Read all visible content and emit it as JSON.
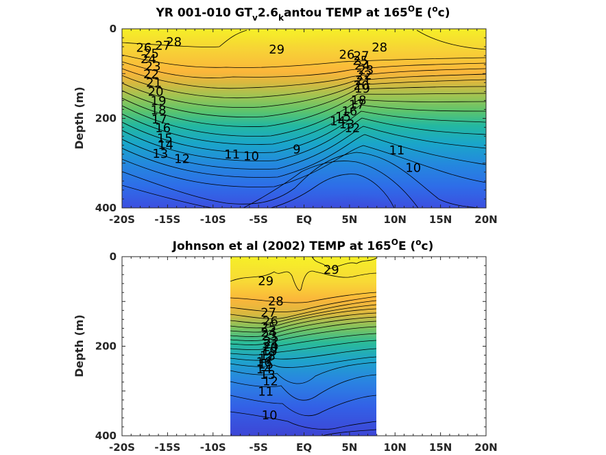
{
  "chart_data": [
    {
      "type": "heatmap",
      "subtype": "filled-contour",
      "title_parts": [
        "YR 001-010 GT",
        "v",
        "2.6",
        "k",
        "antou TEMP at 165",
        "O",
        "E (",
        "o",
        "c)"
      ],
      "xlabel": "",
      "ylabel": "Depth (m)",
      "x_ticks": [
        "-20S",
        "-15S",
        "-10S",
        "-5S",
        "EQ",
        "5N",
        "10N",
        "15N",
        "20N"
      ],
      "x_tick_values": [
        -20,
        -15,
        -10,
        -5,
        0,
        5,
        10,
        15,
        20
      ],
      "y_ticks": [
        "0",
        "200",
        "400"
      ],
      "y_tick_values": [
        0,
        200,
        400
      ],
      "xlim": [
        -20,
        20
      ],
      "ylim": [
        400,
        0
      ],
      "y_reversed": true,
      "grid": false,
      "colormap": "parula",
      "color_range_degC": [
        8,
        30
      ],
      "contour_interval_degC": 1,
      "contour_levels": [
        9,
        10,
        11,
        12,
        13,
        14,
        15,
        16,
        17,
        18,
        19,
        20,
        21,
        22,
        23,
        24,
        25,
        26,
        27,
        28,
        29
      ],
      "contour_labels": [
        {
          "text": "28",
          "x": -14.3,
          "y": 30
        },
        {
          "text": "27",
          "x": -15.5,
          "y": 38
        },
        {
          "text": "26",
          "x": -17.6,
          "y": 43
        },
        {
          "text": "25",
          "x": -16.8,
          "y": 56
        },
        {
          "text": "24",
          "x": -17.1,
          "y": 68
        },
        {
          "text": "23",
          "x": -16.6,
          "y": 84
        },
        {
          "text": "22",
          "x": -16.8,
          "y": 102
        },
        {
          "text": "21",
          "x": -16.5,
          "y": 121
        },
        {
          "text": "20",
          "x": -16.3,
          "y": 141
        },
        {
          "text": "19",
          "x": -16.0,
          "y": 162
        },
        {
          "text": "18",
          "x": -16.0,
          "y": 182
        },
        {
          "text": "17",
          "x": -15.9,
          "y": 203
        },
        {
          "text": "16",
          "x": -15.5,
          "y": 222
        },
        {
          "text": "15",
          "x": -15.3,
          "y": 245
        },
        {
          "text": "14",
          "x": -15.2,
          "y": 260
        },
        {
          "text": "13",
          "x": -15.8,
          "y": 280
        },
        {
          "text": "12",
          "x": -13.4,
          "y": 291
        },
        {
          "text": "11",
          "x": -7.9,
          "y": 281
        },
        {
          "text": "10",
          "x": -5.8,
          "y": 285
        },
        {
          "text": "9",
          "x": -0.8,
          "y": 270
        },
        {
          "text": "29",
          "x": -3.0,
          "y": 47
        },
        {
          "text": "28",
          "x": 8.3,
          "y": 42
        },
        {
          "text": "27",
          "x": 6.3,
          "y": 61
        },
        {
          "text": "26",
          "x": 4.7,
          "y": 58
        },
        {
          "text": "25",
          "x": 6.2,
          "y": 72
        },
        {
          "text": "24",
          "x": 6.4,
          "y": 83
        },
        {
          "text": "23",
          "x": 6.8,
          "y": 93
        },
        {
          "text": "22",
          "x": 6.6,
          "y": 104
        },
        {
          "text": "21",
          "x": 6.5,
          "y": 116
        },
        {
          "text": "20",
          "x": 6.3,
          "y": 127
        },
        {
          "text": "19",
          "x": 6.4,
          "y": 134
        },
        {
          "text": "18",
          "x": 6.0,
          "y": 160
        },
        {
          "text": "17",
          "x": 5.8,
          "y": 170
        },
        {
          "text": "16",
          "x": 5.0,
          "y": 185
        },
        {
          "text": "15",
          "x": 4.3,
          "y": 197
        },
        {
          "text": "14",
          "x": 3.7,
          "y": 207
        },
        {
          "text": "13",
          "x": 4.7,
          "y": 214
        },
        {
          "text": "12",
          "x": 5.3,
          "y": 222
        },
        {
          "text": "11",
          "x": 10.2,
          "y": 272
        },
        {
          "text": "10",
          "x": 12.0,
          "y": 311
        }
      ]
    },
    {
      "type": "heatmap",
      "subtype": "filled-contour",
      "title_parts": [
        "Johnson et al (2002) TEMP at 165",
        "O",
        "E (",
        "o",
        "c)"
      ],
      "xlabel": "",
      "ylabel": "Depth (m)",
      "x_ticks": [
        "-20S",
        "-15S",
        "-10S",
        "-5S",
        "EQ",
        "5N",
        "10N",
        "15N",
        "20N"
      ],
      "x_tick_values": [
        -20,
        -15,
        -10,
        -5,
        0,
        5,
        10,
        15,
        20
      ],
      "y_ticks": [
        "0",
        "200",
        "400"
      ],
      "y_tick_values": [
        0,
        200,
        400
      ],
      "xlim": [
        -20,
        20
      ],
      "ylim": [
        400,
        0
      ],
      "y_reversed": true,
      "grid": false,
      "colormap": "parula",
      "color_range_degC": [
        8,
        30
      ],
      "data_extent_x": [
        -8,
        8
      ],
      "contour_interval_degC": 1,
      "contour_levels": [
        10,
        11,
        12,
        13,
        14,
        15,
        16,
        17,
        18,
        19,
        20,
        21,
        22,
        23,
        24,
        25,
        26,
        27,
        28,
        29
      ],
      "contour_labels": [
        {
          "text": "29",
          "x": -4.2,
          "y": 55
        },
        {
          "text": "29",
          "x": 3.0,
          "y": 30
        },
        {
          "text": "28",
          "x": -3.1,
          "y": 100
        },
        {
          "text": "27",
          "x": -3.9,
          "y": 126
        },
        {
          "text": "26",
          "x": -3.7,
          "y": 145
        },
        {
          "text": "25",
          "x": -3.9,
          "y": 158
        },
        {
          "text": "24",
          "x": -3.9,
          "y": 170
        },
        {
          "text": "23",
          "x": -3.8,
          "y": 178
        },
        {
          "text": "22",
          "x": -3.6,
          "y": 190
        },
        {
          "text": "21",
          "x": -3.6,
          "y": 196
        },
        {
          "text": "20",
          "x": -3.7,
          "y": 202
        },
        {
          "text": "19",
          "x": -3.8,
          "y": 212
        },
        {
          "text": "18",
          "x": -4.0,
          "y": 222
        },
        {
          "text": "17",
          "x": -4.2,
          "y": 228
        },
        {
          "text": "16",
          "x": -4.4,
          "y": 236
        },
        {
          "text": "15",
          "x": -4.2,
          "y": 241
        },
        {
          "text": "14",
          "x": -4.4,
          "y": 252
        },
        {
          "text": "13",
          "x": -4.0,
          "y": 264
        },
        {
          "text": "12",
          "x": -3.7,
          "y": 279
        },
        {
          "text": "11",
          "x": -4.2,
          "y": 302
        },
        {
          "text": "10",
          "x": -3.8,
          "y": 355
        }
      ]
    }
  ]
}
